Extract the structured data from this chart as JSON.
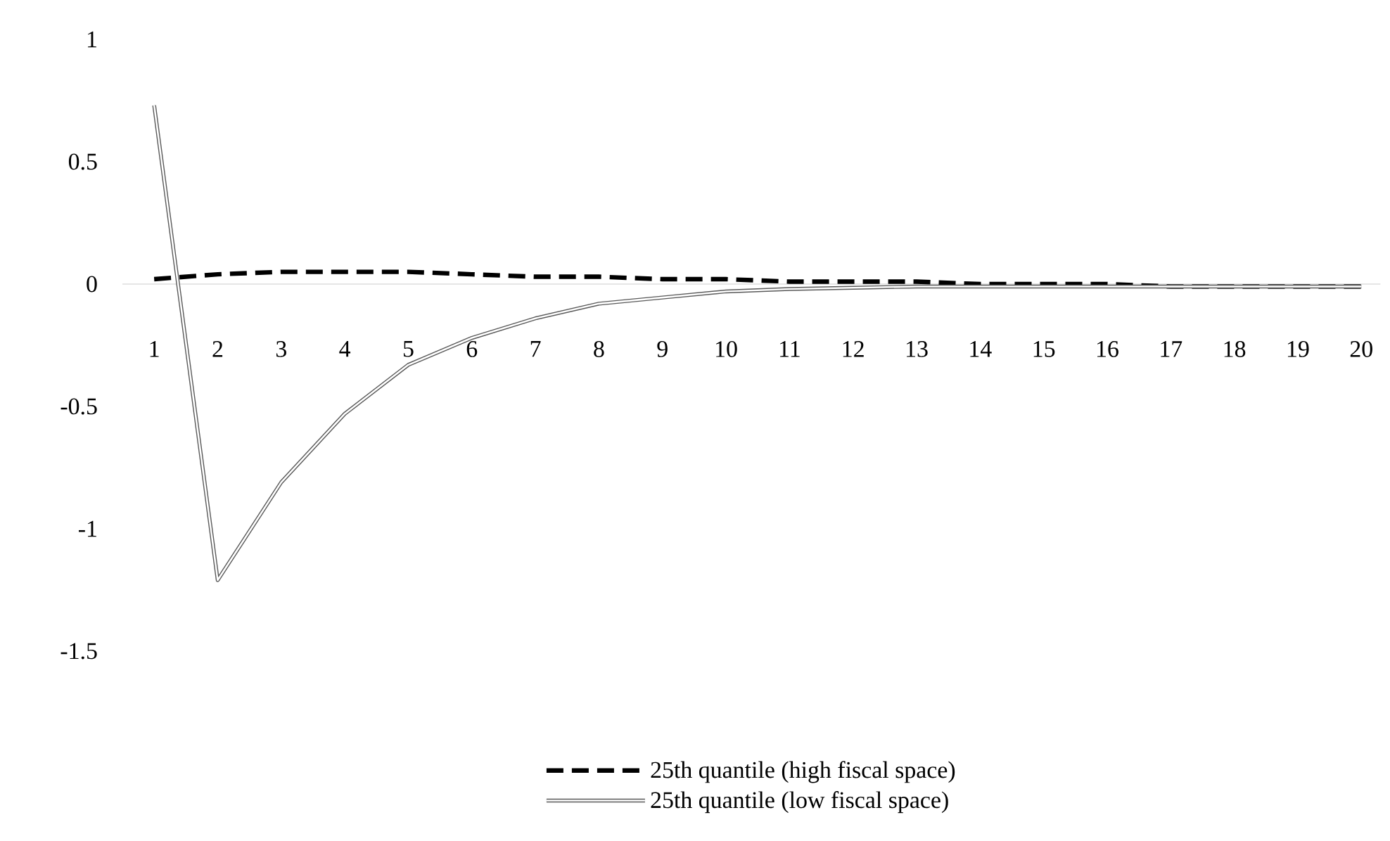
{
  "chart_data": {
    "type": "line",
    "categories": [
      "1",
      "2",
      "3",
      "4",
      "5",
      "6",
      "7",
      "8",
      "9",
      "10",
      "11",
      "12",
      "13",
      "14",
      "15",
      "16",
      "17",
      "18",
      "19",
      "20"
    ],
    "series": [
      {
        "name": "25th quantile (high fiscal space)",
        "color": "#000000",
        "line_style": "dashed",
        "values": [
          0.02,
          0.04,
          0.05,
          0.05,
          0.05,
          0.04,
          0.03,
          0.03,
          0.02,
          0.02,
          0.01,
          0.01,
          0.01,
          0,
          0,
          0,
          -0.01,
          -0.01,
          -0.01,
          -0.01
        ]
      },
      {
        "name": "25th quantile (low fiscal space)",
        "color": "#595959",
        "line_style": "solid",
        "values": [
          0.73,
          -1.21,
          -0.81,
          -0.53,
          -0.33,
          -0.22,
          -0.14,
          -0.08,
          -0.055,
          -0.03,
          -0.02,
          -0.015,
          -0.01,
          -0.01,
          -0.01,
          -0.01,
          -0.01,
          -0.01,
          -0.01,
          -0.01
        ]
      }
    ],
    "ylim": [
      -1.5,
      1
    ],
    "yticks": [
      1,
      0.5,
      0,
      -0.5,
      -1,
      -1.5
    ],
    "grid": false,
    "legend": "bottom",
    "marker": "none"
  }
}
